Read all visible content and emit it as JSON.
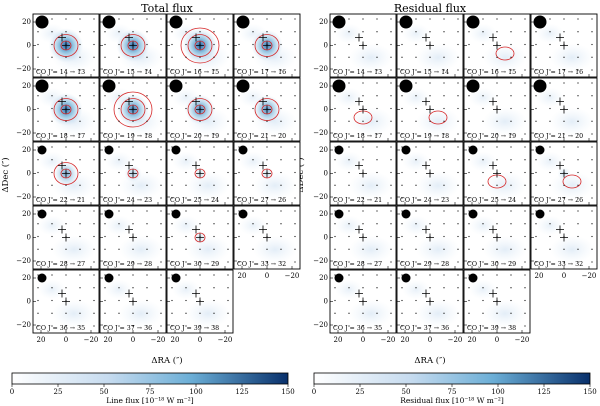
{
  "figure": {
    "panels": [
      {
        "title": "Total flux",
        "cbar_label": "Line flux [10⁻¹⁸ W m⁻²]",
        "has_colorbar": true,
        "cells": [
          {
            "label": "CO J = 14 → 13",
            "row": 0,
            "col": 0,
            "contours": 2,
            "peak": 0.95
          },
          {
            "label": "CO J = 15 → 14",
            "row": 0,
            "col": 1,
            "contours": 2,
            "peak": 0.9
          },
          {
            "label": "CO J = 16 → 15",
            "row": 0,
            "col": 2,
            "contours": 3,
            "peak": 0.95
          },
          {
            "label": "CO J = 17 → 16",
            "row": 0,
            "col": 3,
            "contours": 2,
            "peak": 0.85
          },
          {
            "label": "CO J = 18 → 17",
            "row": 1,
            "col": 0,
            "contours": 2,
            "peak": 0.9
          },
          {
            "label": "CO J = 19 → 18",
            "row": 1,
            "col": 1,
            "contours": 3,
            "peak": 0.85
          },
          {
            "label": "CO J = 20 → 19",
            "row": 1,
            "col": 2,
            "contours": 2,
            "peak": 0.8
          },
          {
            "label": "CO J = 21 → 20",
            "row": 1,
            "col": 3,
            "contours": 2,
            "peak": 0.75
          },
          {
            "label": "CO J = 22 → 21",
            "row": 2,
            "col": 0,
            "contours": 2,
            "peak": 0.6
          },
          {
            "label": "CO J = 24 → 23",
            "row": 2,
            "col": 1,
            "contours": 1,
            "peak": 0.35
          },
          {
            "label": "CO J = 25 → 24",
            "row": 2,
            "col": 2,
            "contours": 1,
            "peak": 0.2
          },
          {
            "label": "CO J = 27 → 26",
            "row": 2,
            "col": 3,
            "contours": 1,
            "peak": 0.2
          },
          {
            "label": "CO J = 28 → 27",
            "row": 3,
            "col": 0,
            "contours": 0,
            "peak": 0.15
          },
          {
            "label": "CO J = 29 → 28",
            "row": 3,
            "col": 1,
            "contours": 0,
            "peak": 0.1
          },
          {
            "label": "CO J = 30 → 29",
            "row": 3,
            "col": 2,
            "contours": 1,
            "peak": 0.2
          },
          {
            "label": "CO J = 33 → 32",
            "row": 3,
            "col": 3,
            "contours": 0,
            "peak": 0.05
          },
          {
            "label": "CO J = 36 → 35",
            "row": 4,
            "col": 0,
            "contours": 0,
            "peak": 0.08
          },
          {
            "label": "CO J = 37 → 36",
            "row": 4,
            "col": 1,
            "contours": 0,
            "peak": 0.05
          },
          {
            "label": "CO J = 39 → 38",
            "row": 4,
            "col": 2,
            "contours": 0,
            "peak": 0.08
          }
        ]
      },
      {
        "title": "Residual flux",
        "cbar_label": "Residual flux [10⁻¹⁸ W m⁻²]",
        "has_colorbar": true,
        "cells": [
          {
            "label": "CO J = 14 → 13",
            "row": 0,
            "col": 0,
            "contours": 0,
            "peak": 0.1
          },
          {
            "label": "CO J = 15 → 14",
            "row": 0,
            "col": 1,
            "contours": 0,
            "peak": 0.1
          },
          {
            "label": "CO J = 16 → 15",
            "row": 0,
            "col": 2,
            "contours": 1,
            "peak": 0.15
          },
          {
            "label": "CO J = 17 → 16",
            "row": 0,
            "col": 3,
            "contours": 0,
            "peak": 0.1
          },
          {
            "label": "CO J = 18 → 17",
            "row": 1,
            "col": 0,
            "contours": 1,
            "peak": 0.15
          },
          {
            "label": "CO J = 19 → 18",
            "row": 1,
            "col": 1,
            "contours": 1,
            "peak": 0.15
          },
          {
            "label": "CO J = 20 → 19",
            "row": 1,
            "col": 2,
            "contours": 0,
            "peak": 0.1
          },
          {
            "label": "CO J = 21 → 20",
            "row": 1,
            "col": 3,
            "contours": 0,
            "peak": 0.1
          },
          {
            "label": "CO J = 22 → 21",
            "row": 2,
            "col": 0,
            "contours": 0,
            "peak": 0.1
          },
          {
            "label": "CO J = 24 → 23",
            "row": 2,
            "col": 1,
            "contours": 0,
            "peak": 0.1
          },
          {
            "label": "CO J = 25 → 24",
            "row": 2,
            "col": 2,
            "contours": 1,
            "peak": 0.15
          },
          {
            "label": "CO J = 27 → 26",
            "row": 2,
            "col": 3,
            "contours": 1,
            "peak": 0.2
          },
          {
            "label": "CO J = 28 → 27",
            "row": 3,
            "col": 0,
            "contours": 0,
            "peak": 0.1
          },
          {
            "label": "CO J = 29 → 28",
            "row": 3,
            "col": 1,
            "contours": 0,
            "peak": 0.1
          },
          {
            "label": "CO J = 30 → 29",
            "row": 3,
            "col": 2,
            "contours": 0,
            "peak": 0.1
          },
          {
            "label": "CO J = 33 → 32",
            "row": 3,
            "col": 3,
            "contours": 0,
            "peak": 0.1
          },
          {
            "label": "CO J = 36 → 35",
            "row": 4,
            "col": 0,
            "contours": 0,
            "peak": 0.05
          },
          {
            "label": "CO J = 37 → 36",
            "row": 4,
            "col": 1,
            "contours": 0,
            "peak": 0.05
          },
          {
            "label": "CO J = 39 → 38",
            "row": 4,
            "col": 2,
            "contours": 0,
            "peak": 0.05
          }
        ]
      }
    ],
    "axes": {
      "xlabel": "ΔRA (″)",
      "ylabel": "ΔDec (″)",
      "xticks": [
        "20",
        "0",
        "−20"
      ],
      "yticks": [
        "20",
        "0",
        "−20"
      ]
    },
    "colorbar": {
      "ticks": [
        "0",
        "25",
        "50",
        "75",
        "100",
        "125",
        "150"
      ],
      "range": [
        0,
        150
      ]
    },
    "colors": {
      "contour": "#d62728",
      "cmap_low": "#ffffff",
      "cmap_high": "#08306b",
      "marker": "#000000"
    }
  }
}
